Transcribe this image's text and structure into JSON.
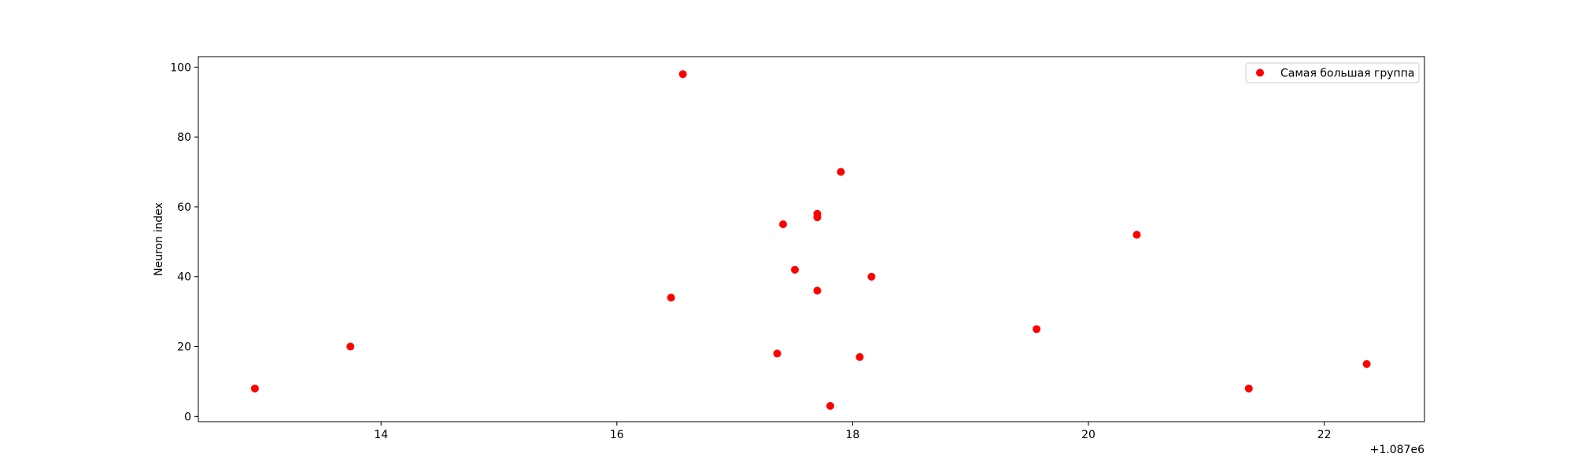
{
  "chart_data": {
    "type": "scatter",
    "title": "",
    "xlabel": "",
    "ylabel": "Neuron index",
    "x_offset_label": "+1.087e6",
    "xlim": [
      1087012.45,
      1087022.85
    ],
    "ylim": [
      -1.5,
      103
    ],
    "xticks": [
      1087014,
      1087016,
      1087018,
      1087020,
      1087022
    ],
    "xtick_labels": [
      "14",
      "16",
      "18",
      "20",
      "22"
    ],
    "yticks": [
      0,
      20,
      40,
      60,
      80,
      100
    ],
    "ytick_labels": [
      "0",
      "20",
      "40",
      "60",
      "80",
      "100"
    ],
    "grid": false,
    "legend_position": "top-right",
    "series": [
      {
        "name": "Самая большая группа",
        "color": "#ff0000",
        "marker": "circle",
        "points": [
          {
            "x": 1087012.93,
            "y": 8
          },
          {
            "x": 1087013.74,
            "y": 20
          },
          {
            "x": 1087016.46,
            "y": 34
          },
          {
            "x": 1087016.56,
            "y": 98
          },
          {
            "x": 1087017.36,
            "y": 18
          },
          {
            "x": 1087017.41,
            "y": 55
          },
          {
            "x": 1087017.51,
            "y": 42
          },
          {
            "x": 1087017.7,
            "y": 58
          },
          {
            "x": 1087017.7,
            "y": 57
          },
          {
            "x": 1087017.7,
            "y": 36
          },
          {
            "x": 1087017.81,
            "y": 3
          },
          {
            "x": 1087017.9,
            "y": 70
          },
          {
            "x": 1087018.06,
            "y": 17
          },
          {
            "x": 1087018.16,
            "y": 40
          },
          {
            "x": 1087019.56,
            "y": 25
          },
          {
            "x": 1087020.41,
            "y": 52
          },
          {
            "x": 1087021.36,
            "y": 8
          },
          {
            "x": 1087022.36,
            "y": 15
          }
        ]
      }
    ]
  }
}
